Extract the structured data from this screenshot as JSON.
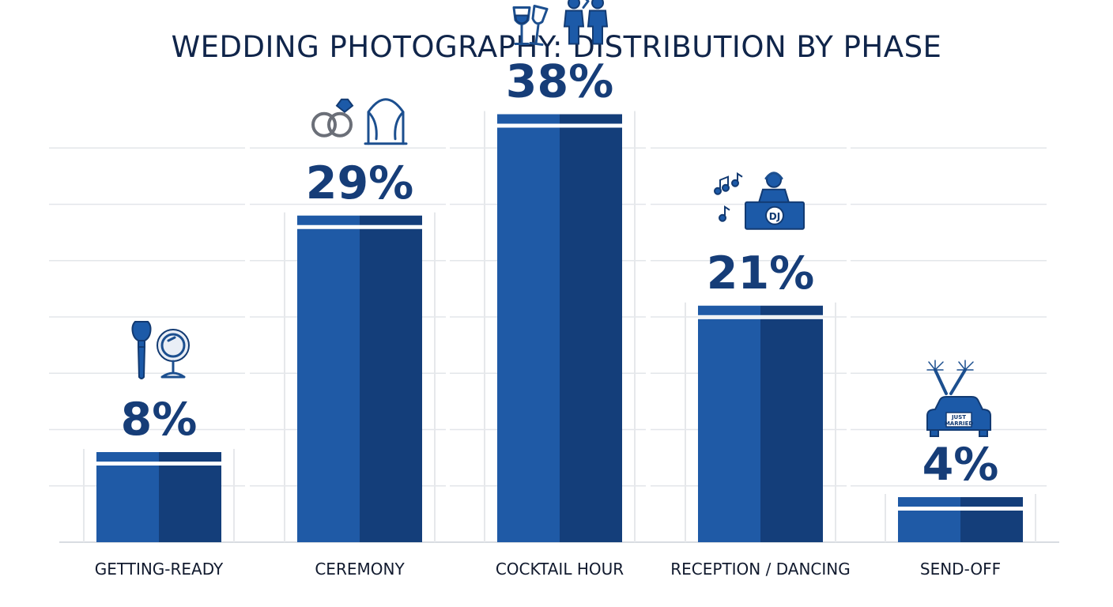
{
  "chart_data": {
    "type": "bar",
    "title": "WEDDING PHOTOGRAPHY: DISTRIBUTION BY PHASE",
    "categories": [
      "GETTING-READY",
      "CEREMONY",
      "COCKTAIL HOUR",
      "RECEPTION / DANCING",
      "SEND-OFF"
    ],
    "values": [
      8,
      29,
      38,
      21,
      4
    ],
    "value_labels": [
      "8%",
      "29%",
      "38%",
      "21%",
      "4%"
    ],
    "icons": [
      "makeup-brush-mirror-icon",
      "rings-arch-icon",
      "toast-glasses-people-icon",
      "dj-booth-music-icon",
      "just-married-car-sparklers-icon"
    ],
    "icon_text": {
      "dj": "DJ",
      "car_line1": "JUST",
      "car_line2": "MARRIED"
    },
    "ylim": [
      0,
      40
    ],
    "grid": true,
    "legend": "none",
    "colors": {
      "bar_light": "#1f5aa6",
      "bar_dark": "#143e7a",
      "text": "#10254a",
      "grid": "#e3e6ea"
    }
  }
}
